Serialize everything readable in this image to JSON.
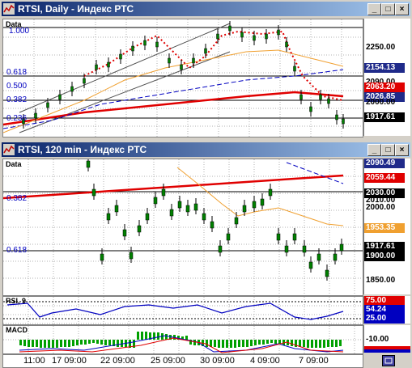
{
  "window1": {
    "title": "RTSI, Daily - Индекс РТС",
    "series_label": "Data",
    "fib_labels": [
      "1.000",
      "0.618",
      "0.500",
      "0.382",
      "0.236"
    ],
    "price_tags": [
      {
        "label": "2250.00",
        "style": "plain"
      },
      {
        "label": "2154.13",
        "style": "blue"
      },
      {
        "label": "2090.00",
        "style": "plain"
      },
      {
        "label": "2063.20",
        "style": "red"
      },
      {
        "label": "2026.85",
        "style": "blue"
      },
      {
        "label": "2000.00",
        "style": "plain"
      },
      {
        "label": "1917.61",
        "style": "black"
      }
    ]
  },
  "window2": {
    "title": "RTSI, 120 min - Индекс РТС",
    "series_label": "Data",
    "fib_labels": [
      "0.382",
      "0.618"
    ],
    "price_tags": [
      {
        "label": "2090.49",
        "style": "blue"
      },
      {
        "label": "2059.44",
        "style": "red"
      },
      {
        "label": "2030.00",
        "style": "black"
      },
      {
        "label": "2010.00",
        "style": "plain"
      },
      {
        "label": "2000.00",
        "style": "plain"
      },
      {
        "label": "1953.35",
        "style": "orange"
      },
      {
        "label": "1917.61",
        "style": "black"
      },
      {
        "label": "1900.00",
        "style": "black"
      },
      {
        "label": "1850.00",
        "style": "plain"
      }
    ],
    "rsi": {
      "label": "RSI, 9",
      "tags": [
        {
          "label": "75.00",
          "style": "red"
        },
        {
          "label": "54.24",
          "style": "blue"
        },
        {
          "label": "25.00",
          "style": "blue"
        }
      ]
    },
    "macd": {
      "label": "MACD",
      "tags": [
        {
          "label": "-10.00",
          "style": "plain"
        }
      ]
    },
    "time_labels": [
      "11:00",
      "17 09:00",
      "22 09:00",
      "25 09:00",
      "30 09:00",
      "4 09:00",
      "7 09:00"
    ]
  },
  "colors": {
    "title_start": "#0a246a",
    "title_end": "#a6caf0",
    "trend_red": "#e00000",
    "ma_blue": "#0000c0",
    "ma_orange": "#f0a030",
    "candle": "#006400",
    "macd_green": "#00a000"
  }
}
